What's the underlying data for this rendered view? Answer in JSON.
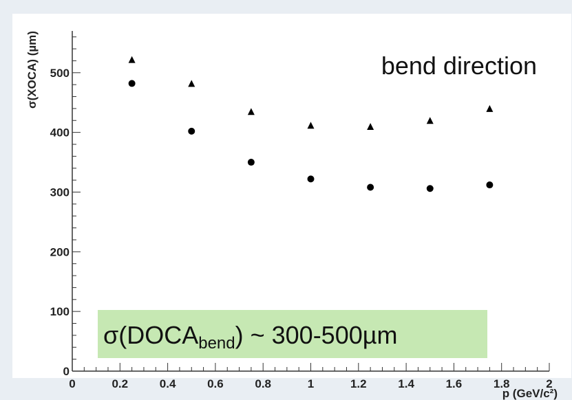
{
  "colors": {
    "outer_background": "#e9eef3",
    "plot_background": "#ffffff",
    "marker": "#000000",
    "formula_box": "#c6e8b3"
  },
  "annotation": "bend direction",
  "formula": {
    "prefix": "σ(DOCA",
    "subscript": "bend",
    "suffix": ") ~ 300-500µm"
  },
  "chart_data": {
    "type": "scatter",
    "xlabel": "p (GeV/c²)",
    "ylabel": "σ(XOCA) (µm)",
    "xlim": [
      0,
      2
    ],
    "ylim": [
      0,
      570
    ],
    "x_ticks": [
      "0",
      "0.2",
      "0.4",
      "0.6",
      "0.8",
      "1",
      "1.2",
      "1.4",
      "1.6",
      "1.8",
      "2"
    ],
    "x_tick_values": [
      0,
      0.2,
      0.4,
      0.6,
      0.8,
      1,
      1.2,
      1.4,
      1.6,
      1.8,
      2
    ],
    "y_ticks": [
      "0",
      "100",
      "200",
      "300",
      "400",
      "500"
    ],
    "y_tick_values": [
      0,
      100,
      200,
      300,
      400,
      500
    ],
    "grid": false,
    "series": [
      {
        "marker": "triangle",
        "x": [
          0.25,
          0.5,
          0.75,
          1.0,
          1.25,
          1.5,
          1.75
        ],
        "y": [
          522,
          482,
          435,
          412,
          410,
          420,
          440
        ]
      },
      {
        "marker": "circle",
        "x": [
          0.25,
          0.5,
          0.75,
          1.0,
          1.25,
          1.5,
          1.75
        ],
        "y": [
          482,
          402,
          350,
          322,
          308,
          306,
          312
        ]
      }
    ]
  }
}
